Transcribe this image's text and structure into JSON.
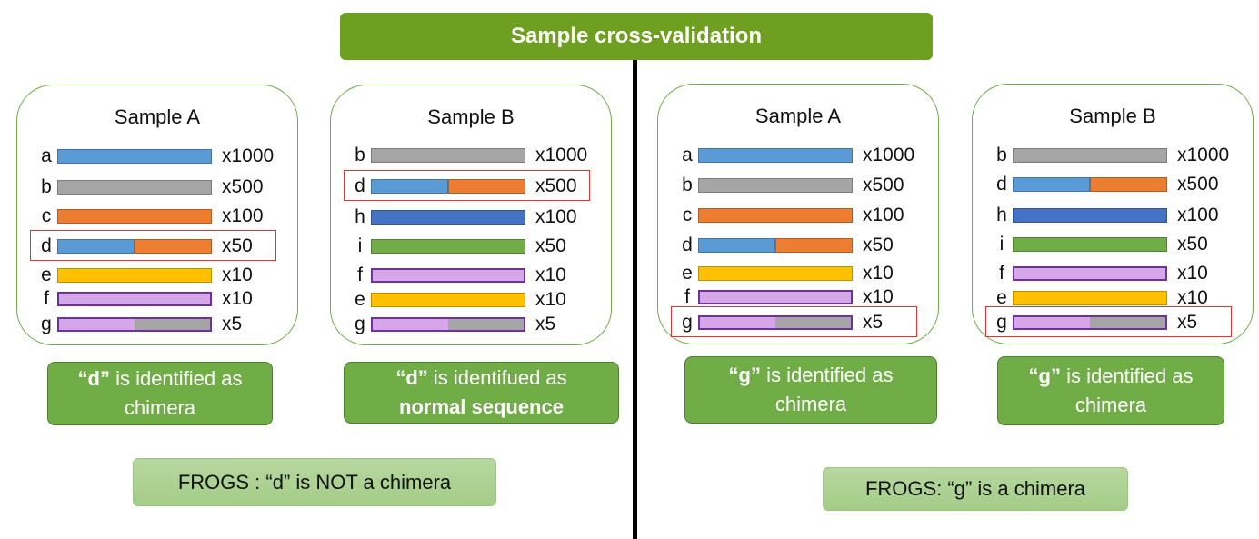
{
  "title": "Sample cross-validation",
  "colors": {
    "title_bg": "#6f9f21",
    "blue": "#5b9bd5",
    "gray": "#a5a5a5",
    "orange": "#ed7d31",
    "darkblue": "#4472c4",
    "green": "#70ad47",
    "yellow": "#ffc000",
    "purple": "#d5a6e8",
    "purple_border": "#7030a0",
    "highlight": "#e8312f"
  },
  "panels": [
    {
      "title": "Sample A",
      "highlight_row": 3,
      "rows": [
        {
          "label": "a",
          "count": "x1000",
          "segments": [
            "blue"
          ]
        },
        {
          "label": "b",
          "count": "x500",
          "segments": [
            "gray"
          ]
        },
        {
          "label": "c",
          "count": "x100",
          "segments": [
            "orange"
          ]
        },
        {
          "label": "d",
          "count": "x50",
          "segments": [
            "blue",
            "orange"
          ]
        },
        {
          "label": "e",
          "count": "x10",
          "segments": [
            "yellow"
          ]
        },
        {
          "label": "f",
          "count": "x10",
          "segments": [
            "purple"
          ]
        },
        {
          "label": "g",
          "count": "x5",
          "segments": [
            "purple",
            "gray"
          ]
        }
      ]
    },
    {
      "title": "Sample B",
      "highlight_row": 1,
      "rows": [
        {
          "label": "b",
          "count": "x1000",
          "segments": [
            "gray"
          ]
        },
        {
          "label": "d",
          "count": "x500",
          "segments": [
            "blue",
            "orange"
          ]
        },
        {
          "label": "h",
          "count": "x100",
          "segments": [
            "darkblue"
          ]
        },
        {
          "label": "i",
          "count": "x50",
          "segments": [
            "green"
          ]
        },
        {
          "label": "f",
          "count": "x10",
          "segments": [
            "purple"
          ]
        },
        {
          "label": "e",
          "count": "x10",
          "segments": [
            "yellow"
          ]
        },
        {
          "label": "g",
          "count": "x5",
          "segments": [
            "purple",
            "gray"
          ]
        }
      ]
    },
    {
      "title": "Sample A",
      "highlight_row": 6,
      "rows": [
        {
          "label": "a",
          "count": "x1000",
          "segments": [
            "blue"
          ]
        },
        {
          "label": "b",
          "count": "x500",
          "segments": [
            "gray"
          ]
        },
        {
          "label": "c",
          "count": "x100",
          "segments": [
            "orange"
          ]
        },
        {
          "label": "d",
          "count": "x50",
          "segments": [
            "blue",
            "orange"
          ]
        },
        {
          "label": "e",
          "count": "x10",
          "segments": [
            "yellow"
          ]
        },
        {
          "label": "f",
          "count": "x10",
          "segments": [
            "purple"
          ]
        },
        {
          "label": "g",
          "count": "x5",
          "segments": [
            "purple",
            "gray"
          ]
        }
      ]
    },
    {
      "title": "Sample B",
      "highlight_row": 6,
      "rows": [
        {
          "label": "b",
          "count": "x1000",
          "segments": [
            "gray"
          ]
        },
        {
          "label": "d",
          "count": "x500",
          "segments": [
            "blue",
            "orange"
          ]
        },
        {
          "label": "h",
          "count": "x100",
          "segments": [
            "darkblue"
          ]
        },
        {
          "label": "i",
          "count": "x50",
          "segments": [
            "green"
          ]
        },
        {
          "label": "f",
          "count": "x10",
          "segments": [
            "purple"
          ]
        },
        {
          "label": "e",
          "count": "x10",
          "segments": [
            "yellow"
          ]
        },
        {
          "label": "g",
          "count": "x5",
          "segments": [
            "purple",
            "gray"
          ]
        }
      ]
    }
  ],
  "results": [
    {
      "quote": "“d”",
      "line1_rest": " is identified as",
      "line2": "chimera",
      "line2_bold": false
    },
    {
      "quote": "“d”",
      "line1_rest": " is identifued as",
      "line2": "normal sequence",
      "line2_bold": true
    },
    {
      "quote": "“g”",
      "line1_rest": " is identified as",
      "line2": "chimera",
      "line2_bold": false
    },
    {
      "quote": "“g”",
      "line1_rest": " is identified as",
      "line2": "chimera",
      "line2_bold": false
    }
  ],
  "frogs": [
    "FROGS : “d” is NOT a chimera",
    "FROGS: “g” is a chimera"
  ]
}
